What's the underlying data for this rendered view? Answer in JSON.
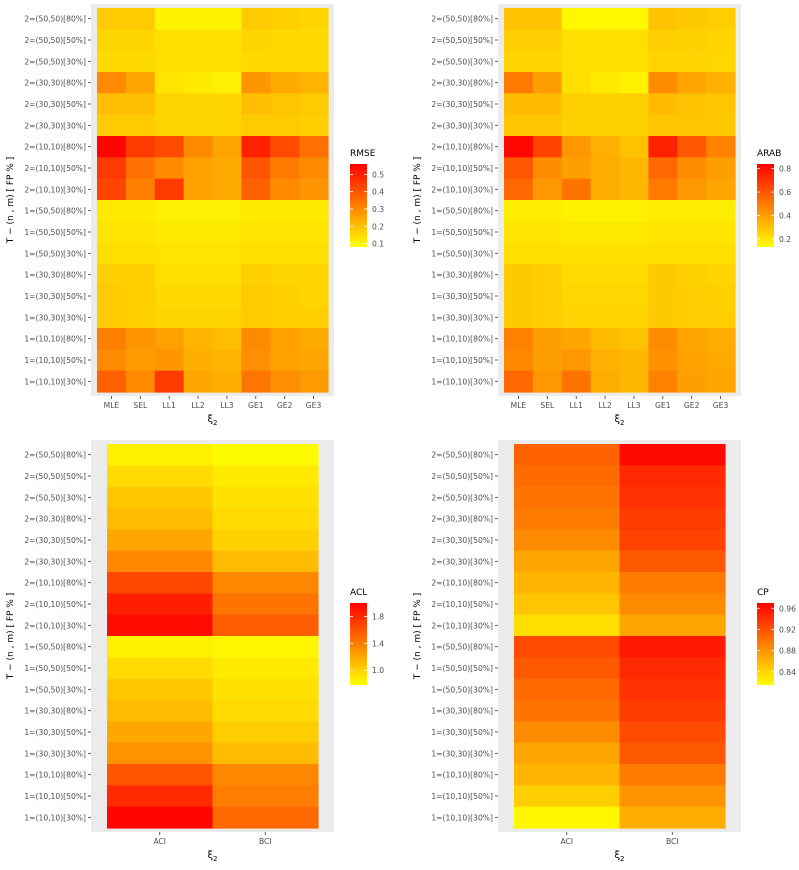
{
  "chart_data": [
    {
      "type": "heatmap",
      "id": "rmse",
      "title": "",
      "xlabel": "ξ",
      "xlabel_sub": "2",
      "ylabel": "T − (n , m) [ FP % ]",
      "legend_title": "RMSE",
      "legend_ticks": [
        "0.5",
        "0.4",
        "0.3",
        "0.2",
        "0.1"
      ],
      "legend_tick_values": [
        0.5,
        0.4,
        0.3,
        0.2,
        0.1
      ],
      "range": [
        0.08,
        0.56
      ],
      "x_categories": [
        "MLE",
        "SEL",
        "LL1",
        "LL2",
        "LL3",
        "GE1",
        "GE2",
        "GE3"
      ],
      "y_categories": [
        "2=(50,50)[80%]",
        "2=(50,50)[50%]",
        "2=(50,50)[30%]",
        "2=(30,30)[80%]",
        "2=(30,30)[50%]",
        "2=(30,30)[30%]",
        "2=(10,10)[80%]",
        "2=(10,10)[50%]",
        "2=(10,10)[30%]",
        "1=(50,50)[80%]",
        "1=(50,50)[50%]",
        "1=(50,50)[30%]",
        "1=(30,30)[80%]",
        "1=(30,30)[50%]",
        "1=(30,30)[30%]",
        "1=(10,10)[80%]",
        "1=(10,10)[50%]",
        "1=(10,10)[30%]"
      ],
      "values": [
        [
          0.18,
          0.18,
          0.1,
          0.1,
          0.1,
          0.18,
          0.17,
          0.16
        ],
        [
          0.16,
          0.16,
          0.14,
          0.14,
          0.14,
          0.16,
          0.15,
          0.15
        ],
        [
          0.15,
          0.15,
          0.14,
          0.14,
          0.14,
          0.15,
          0.15,
          0.15
        ],
        [
          0.3,
          0.25,
          0.13,
          0.12,
          0.11,
          0.28,
          0.24,
          0.22
        ],
        [
          0.2,
          0.2,
          0.16,
          0.16,
          0.16,
          0.2,
          0.19,
          0.18
        ],
        [
          0.18,
          0.18,
          0.16,
          0.16,
          0.16,
          0.18,
          0.18,
          0.17
        ],
        [
          0.55,
          0.45,
          0.42,
          0.3,
          0.25,
          0.5,
          0.42,
          0.35
        ],
        [
          0.45,
          0.35,
          0.3,
          0.26,
          0.24,
          0.4,
          0.33,
          0.3
        ],
        [
          0.43,
          0.32,
          0.45,
          0.26,
          0.24,
          0.38,
          0.3,
          0.28
        ],
        [
          0.12,
          0.12,
          0.11,
          0.11,
          0.11,
          0.12,
          0.12,
          0.12
        ],
        [
          0.13,
          0.13,
          0.12,
          0.12,
          0.12,
          0.13,
          0.13,
          0.13
        ],
        [
          0.14,
          0.14,
          0.13,
          0.13,
          0.13,
          0.14,
          0.14,
          0.14
        ],
        [
          0.17,
          0.17,
          0.14,
          0.14,
          0.14,
          0.17,
          0.16,
          0.16
        ],
        [
          0.18,
          0.17,
          0.15,
          0.15,
          0.15,
          0.18,
          0.17,
          0.16
        ],
        [
          0.18,
          0.17,
          0.16,
          0.16,
          0.16,
          0.18,
          0.17,
          0.17
        ],
        [
          0.32,
          0.28,
          0.26,
          0.22,
          0.2,
          0.3,
          0.26,
          0.24
        ],
        [
          0.3,
          0.27,
          0.28,
          0.23,
          0.22,
          0.29,
          0.26,
          0.25
        ],
        [
          0.38,
          0.3,
          0.45,
          0.25,
          0.23,
          0.34,
          0.29,
          0.27
        ]
      ]
    },
    {
      "type": "heatmap",
      "id": "arab",
      "title": "",
      "xlabel": "ξ",
      "xlabel_sub": "2",
      "ylabel": "T − (n , m) [ FP % ]",
      "legend_title": "ARAB",
      "legend_ticks": [
        "0.8",
        "0.6",
        "0.4",
        "0.2"
      ],
      "legend_tick_values": [
        0.8,
        0.6,
        0.4,
        0.2
      ],
      "range": [
        0.13,
        0.84
      ],
      "x_categories": [
        "MLE",
        "SEL",
        "LL1",
        "LL2",
        "LL3",
        "GE1",
        "GE2",
        "GE3"
      ],
      "y_categories": [
        "2=(50,50)[80%]",
        "2=(50,50)[50%]",
        "2=(50,50)[30%]",
        "2=(30,30)[80%]",
        "2=(30,30)[50%]",
        "2=(30,30)[30%]",
        "2=(10,10)[80%]",
        "2=(10,10)[50%]",
        "2=(10,10)[30%]",
        "1=(50,50)[80%]",
        "1=(50,50)[50%]",
        "1=(50,50)[30%]",
        "1=(30,30)[80%]",
        "1=(30,30)[50%]",
        "1=(30,30)[30%]",
        "1=(10,10)[80%]",
        "1=(10,10)[50%]",
        "1=(10,10)[30%]"
      ],
      "values": [
        [
          0.3,
          0.3,
          0.15,
          0.15,
          0.15,
          0.3,
          0.28,
          0.27
        ],
        [
          0.27,
          0.27,
          0.22,
          0.22,
          0.22,
          0.27,
          0.26,
          0.25
        ],
        [
          0.25,
          0.25,
          0.22,
          0.22,
          0.22,
          0.25,
          0.25,
          0.24
        ],
        [
          0.5,
          0.4,
          0.22,
          0.19,
          0.17,
          0.45,
          0.38,
          0.35
        ],
        [
          0.32,
          0.32,
          0.26,
          0.26,
          0.26,
          0.32,
          0.3,
          0.29
        ],
        [
          0.29,
          0.29,
          0.26,
          0.26,
          0.26,
          0.29,
          0.29,
          0.28
        ],
        [
          0.82,
          0.65,
          0.42,
          0.35,
          0.3,
          0.75,
          0.6,
          0.48
        ],
        [
          0.6,
          0.45,
          0.4,
          0.36,
          0.33,
          0.55,
          0.45,
          0.4
        ],
        [
          0.55,
          0.42,
          0.52,
          0.36,
          0.33,
          0.5,
          0.42,
          0.38
        ],
        [
          0.18,
          0.18,
          0.17,
          0.17,
          0.17,
          0.18,
          0.18,
          0.18
        ],
        [
          0.2,
          0.2,
          0.19,
          0.19,
          0.19,
          0.2,
          0.2,
          0.2
        ],
        [
          0.22,
          0.22,
          0.21,
          0.21,
          0.21,
          0.22,
          0.22,
          0.22
        ],
        [
          0.28,
          0.27,
          0.23,
          0.23,
          0.23,
          0.28,
          0.26,
          0.25
        ],
        [
          0.28,
          0.27,
          0.24,
          0.24,
          0.24,
          0.28,
          0.27,
          0.26
        ],
        [
          0.28,
          0.27,
          0.25,
          0.25,
          0.25,
          0.28,
          0.27,
          0.27
        ],
        [
          0.48,
          0.4,
          0.38,
          0.32,
          0.3,
          0.45,
          0.38,
          0.36
        ],
        [
          0.46,
          0.4,
          0.42,
          0.35,
          0.33,
          0.44,
          0.39,
          0.37
        ],
        [
          0.55,
          0.42,
          0.52,
          0.36,
          0.33,
          0.48,
          0.4,
          0.38
        ]
      ]
    },
    {
      "type": "heatmap",
      "id": "acl",
      "title": "",
      "xlabel": "ξ",
      "xlabel_sub": "2",
      "ylabel": "T − (n , m) [ FP % ]",
      "legend_title": "ACL",
      "legend_ticks": [
        "1.8",
        "1.4",
        "1.0"
      ],
      "legend_tick_values": [
        1.8,
        1.4,
        1.0
      ],
      "range": [
        0.78,
        2.0
      ],
      "x_categories": [
        "ACI",
        "BCI"
      ],
      "y_categories": [
        "2=(50,50)[80%]",
        "2=(50,50)[50%]",
        "2=(50,50)[30%]",
        "2=(30,30)[80%]",
        "2=(30,30)[50%]",
        "2=(30,30)[30%]",
        "2=(10,10)[80%]",
        "2=(10,10)[50%]",
        "2=(10,10)[30%]",
        "1=(50,50)[80%]",
        "1=(50,50)[50%]",
        "1=(50,50)[30%]",
        "1=(30,30)[80%]",
        "1=(30,30)[50%]",
        "1=(30,30)[30%]",
        "1=(10,10)[80%]",
        "1=(10,10)[50%]",
        "1=(10,10)[30%]"
      ],
      "values": [
        [
          0.85,
          0.8
        ],
        [
          0.95,
          0.88
        ],
        [
          1.05,
          0.92
        ],
        [
          1.1,
          0.95
        ],
        [
          1.2,
          1.0
        ],
        [
          1.35,
          1.1
        ],
        [
          1.65,
          1.35
        ],
        [
          1.85,
          1.45
        ],
        [
          1.95,
          1.55
        ],
        [
          0.85,
          0.82
        ],
        [
          0.95,
          0.88
        ],
        [
          1.05,
          0.92
        ],
        [
          1.1,
          0.95
        ],
        [
          1.2,
          1.02
        ],
        [
          1.3,
          1.1
        ],
        [
          1.6,
          1.35
        ],
        [
          1.8,
          1.4
        ],
        [
          1.98,
          1.5
        ]
      ]
    },
    {
      "type": "heatmap",
      "id": "cp",
      "title": "",
      "xlabel": "ξ",
      "xlabel_sub": "2",
      "ylabel": "T − (n , m) [ FP % ]",
      "legend_title": "CP",
      "legend_ticks": [
        "0.96",
        "0.92",
        "0.88",
        "0.84"
      ],
      "legend_tick_values": [
        0.96,
        0.92,
        0.88,
        0.84
      ],
      "range": [
        0.815,
        0.97
      ],
      "x_categories": [
        "ACI",
        "BCI"
      ],
      "y_categories": [
        "2=(50,50)[80%]",
        "2=(50,50)[50%]",
        "2=(50,50)[30%]",
        "2=(30,30)[80%]",
        "2=(30,30)[50%]",
        "2=(30,30)[30%]",
        "2=(10,10)[80%]",
        "2=(10,10)[50%]",
        "2=(10,10)[30%]",
        "1=(50,50)[80%]",
        "1=(50,50)[50%]",
        "1=(50,50)[30%]",
        "1=(30,30)[80%]",
        "1=(30,30)[50%]",
        "1=(30,30)[30%]",
        "1=(10,10)[80%]",
        "1=(10,10)[50%]",
        "1=(10,10)[30%]"
      ],
      "values": [
        [
          0.91,
          0.965
        ],
        [
          0.905,
          0.945
        ],
        [
          0.9,
          0.94
        ],
        [
          0.895,
          0.935
        ],
        [
          0.885,
          0.93
        ],
        [
          0.87,
          0.915
        ],
        [
          0.86,
          0.895
        ],
        [
          0.85,
          0.885
        ],
        [
          0.835,
          0.87
        ],
        [
          0.925,
          0.955
        ],
        [
          0.915,
          0.945
        ],
        [
          0.905,
          0.94
        ],
        [
          0.9,
          0.935
        ],
        [
          0.885,
          0.925
        ],
        [
          0.87,
          0.915
        ],
        [
          0.86,
          0.895
        ],
        [
          0.845,
          0.88
        ],
        [
          0.82,
          0.865
        ]
      ]
    }
  ]
}
